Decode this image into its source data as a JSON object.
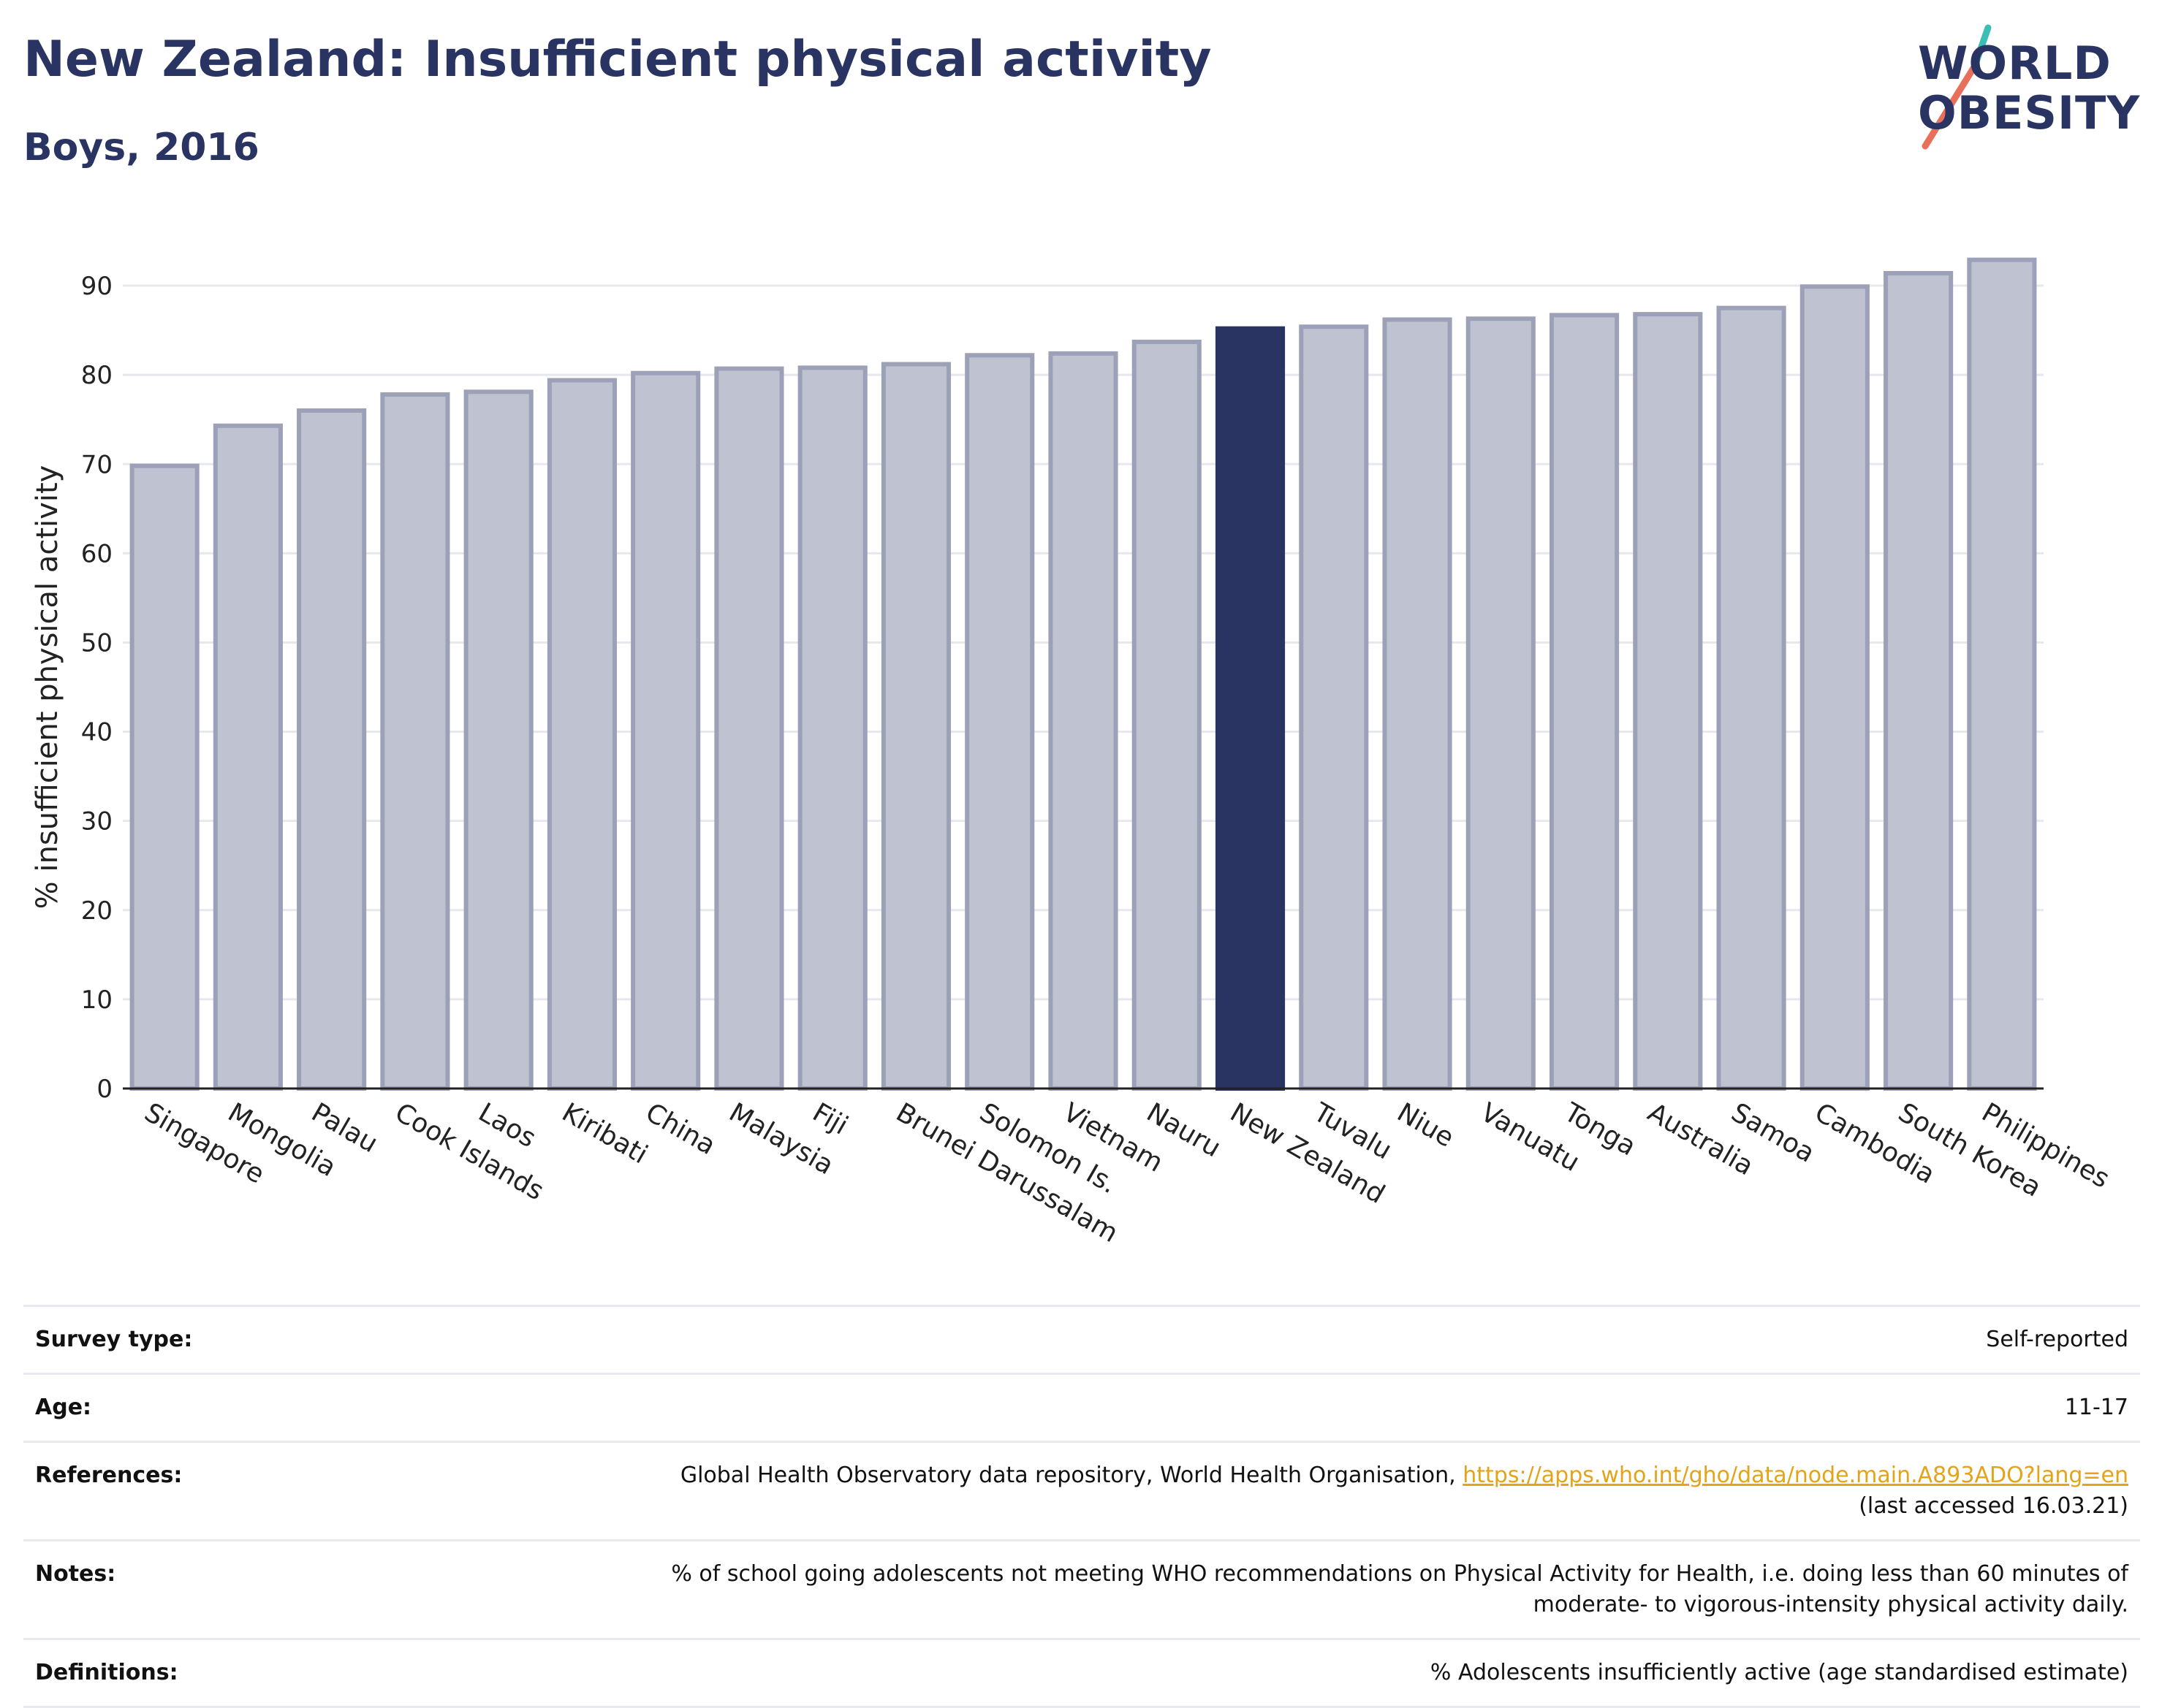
{
  "header": {
    "title": "New Zealand: Insufficient physical activity",
    "subtitle": "Boys, 2016"
  },
  "logo": {
    "line1": "WORLD",
    "line2": "OBESITY",
    "accent_colors": [
      "#3bbfb5",
      "#e8705a"
    ]
  },
  "colors": {
    "highlight": "#2a3462",
    "bar_fill": "#bfc2d0",
    "bar_stroke": "#9da1b8",
    "grid": "#e6e8ee",
    "link": "#e3a41a"
  },
  "chart_data": {
    "type": "bar",
    "title": "New Zealand: Insufficient physical activity",
    "subtitle": "Boys, 2016",
    "xlabel": "",
    "ylabel": "% insufficient physical activity",
    "ylim": [
      0,
      95
    ],
    "yticks": [
      0,
      10,
      20,
      30,
      40,
      50,
      60,
      70,
      80,
      90
    ],
    "grid": true,
    "highlight": "New Zealand",
    "categories": [
      "Singapore",
      "Mongolia",
      "Palau",
      "Cook Islands",
      "Laos",
      "Kiribati",
      "China",
      "Malaysia",
      "Fiji",
      "Brunei Darussalam",
      "Solomon Is.",
      "Vietnam",
      "Nauru",
      "New Zealand",
      "Tuvalu",
      "Niue",
      "Vanuatu",
      "Tonga",
      "Australia",
      "Samoa",
      "Cambodia",
      "South Korea",
      "Philippines"
    ],
    "values": [
      69.8,
      74.3,
      76.0,
      77.8,
      78.1,
      79.4,
      80.2,
      80.7,
      80.8,
      81.2,
      82.2,
      82.4,
      83.7,
      85.2,
      85.4,
      86.2,
      86.3,
      86.7,
      86.8,
      87.5,
      89.9,
      91.4,
      92.9
    ]
  },
  "info": {
    "rows": [
      {
        "key": "Survey type:",
        "value": "Self-reported"
      },
      {
        "key": "Age:",
        "value": "11-17"
      },
      {
        "key": "References:",
        "value": "Global Health Observatory data repository, World Health Organisation,",
        "link": "https://apps.who.int/gho/data/node.main.A893ADO?lang=en",
        "value2": "(last accessed 16.03.21)"
      },
      {
        "key": "Notes:",
        "value": "% of school going adolescents not meeting WHO recommendations on Physical Activity for Health, i.e. doing less than 60 minutes of",
        "value2": "moderate- to vigorous-intensity physical activity daily."
      },
      {
        "key": "Definitions:",
        "value": "% Adolescents insufficiently active (age standardised estimate)"
      }
    ]
  }
}
